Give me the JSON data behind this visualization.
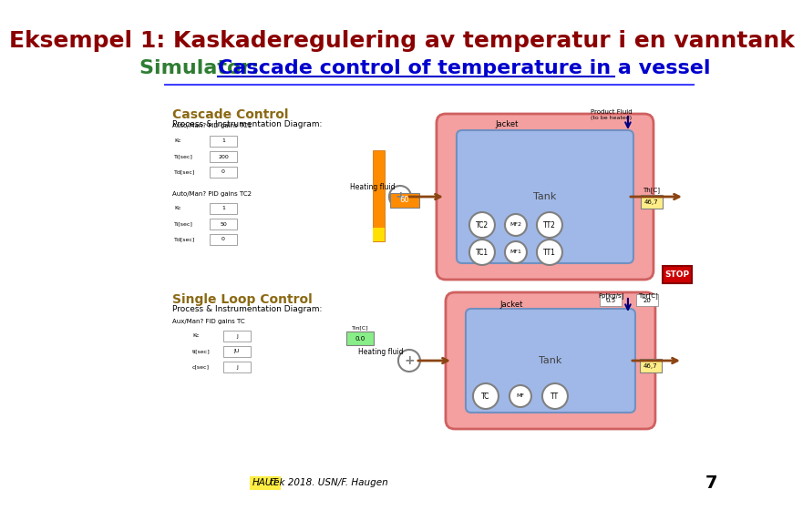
{
  "title_line1": "Eksempel 1: Kaskaderegulering av temperatur i en vanntank",
  "title_line2_prefix": "Simulator: ",
  "title_line2_link": "Cascade control of temperature in a vessel",
  "title_line1_color": "#8B0000",
  "title_line2_prefix_color": "#2E7D32",
  "title_line2_link_color": "#0000CD",
  "title_line1_fontsize": 18,
  "title_line2_fontsize": 16,
  "background_color": "#ffffff",
  "page_number": "7",
  "page_number_color": "#000000",
  "footer_text": "tek 2018. USN/F. Haugen",
  "footer_highlight": "HAUT",
  "footer_color": "#000000",
  "separator_color": "#4040FF",
  "cascade_bg": "#C8D8A0",
  "single_bg": "#C8A878",
  "jacket_face": "#F4A0A0",
  "jacket_edge": "#D06060",
  "tank_face": "#A0B8E8",
  "tank_edge": "#7090C0",
  "arrow_color": "#8B4513",
  "stop_color": "#CC0000",
  "orange_color": "#FF8C00",
  "title_gold": "#8B6914"
}
